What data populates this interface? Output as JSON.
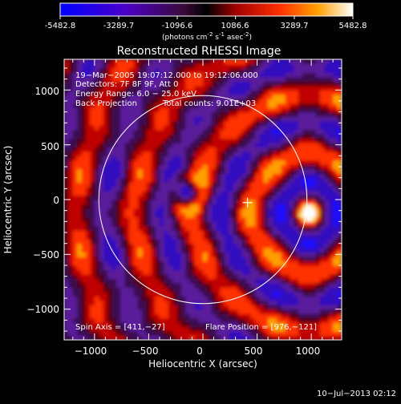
{
  "colorbar": {
    "tick_labels": [
      "-5482.8",
      "-3289.7",
      "-1096.6",
      "1086.6",
      "3289.7",
      "5482.8"
    ],
    "tick_values": [
      -5482.8,
      -3289.7,
      -1096.6,
      1086.6,
      3289.7,
      5482.8
    ],
    "range": [
      -5482.8,
      5482.8
    ],
    "unit_main": "(photons cm",
    "unit_exp1": "-2",
    "unit_s": " s",
    "unit_exp2": "-1",
    "unit_asec": " asec",
    "unit_exp3": "-2",
    "unit_close": ")"
  },
  "chart_data": {
    "type": "heatmap",
    "title": "Reconstructed RHESSI Image",
    "xlabel": "Heliocentric X (arcsec)",
    "ylabel": "Heliocentric Y (arcsec)",
    "xlim": [
      -1280,
      1280
    ],
    "ylim": [
      -1280,
      1280
    ],
    "x_ticks": [
      -1000,
      -500,
      0,
      500,
      1000
    ],
    "x_tick_labels": [
      "−1000",
      "−500",
      "0",
      "500",
      "1000"
    ],
    "y_ticks": [
      1000,
      500,
      0,
      -500,
      -1000
    ],
    "y_tick_labels": [
      "1000",
      "500",
      "0",
      "−500",
      "−1000"
    ],
    "annotations": [
      "19−Mar−2005 19:07:12.000 to 19:12:06.000",
      "Detectors: 7F 8F 9F, Att 0",
      "Energy Range: 6.0 − 25.0 keV",
      "Back Projection",
      "Total counts: 9.01E+03"
    ],
    "spin_axis_label": "Spin Axis = [411,−27]",
    "flare_position_label": "Flare Position = [976,−121]",
    "spin_axis": [
      411,
      -27
    ],
    "flare_position": [
      976,
      -121
    ],
    "minimum_position": [
      -140,
      60
    ],
    "solar_limb_radius": 960,
    "colors": {
      "negative": "#5a1a9a",
      "positive": "#ff3000",
      "peak": "#ffffff",
      "limb": "#ffffff"
    }
  },
  "footer": {
    "date": "10−Jul−2013 02:12"
  }
}
